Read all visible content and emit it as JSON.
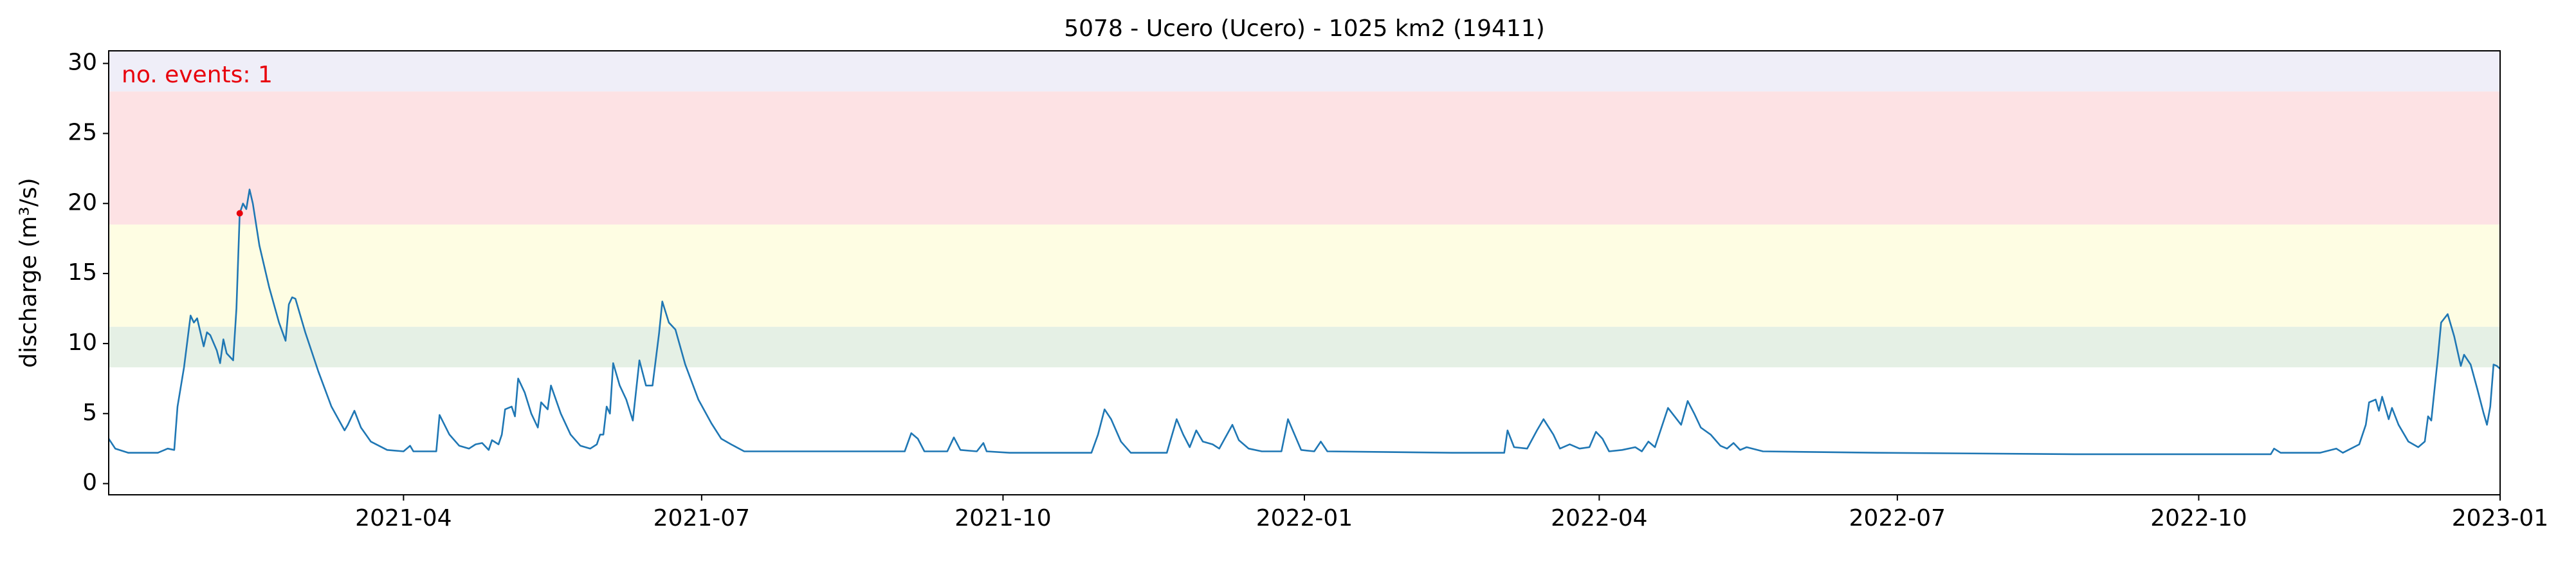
{
  "chart_data": {
    "type": "line",
    "title": "5078 - Ucero (Ucero) - 1025 km2 (19411)",
    "y_label": "discharge (m³/s)",
    "annotation": "no. events: 1",
    "annotation_color": "#e8000b",
    "xlim": [
      0,
      730
    ],
    "xticks": [
      {
        "value": 90,
        "label": "2021-04"
      },
      {
        "value": 181,
        "label": "2021-07"
      },
      {
        "value": 273,
        "label": "2021-10"
      },
      {
        "value": 365,
        "label": "2022-01"
      },
      {
        "value": 455,
        "label": "2022-04"
      },
      {
        "value": 546,
        "label": "2022-07"
      },
      {
        "value": 638,
        "label": "2022-10"
      },
      {
        "value": 730,
        "label": "2023-01"
      }
    ],
    "ylim": [
      -0.8,
      30.9
    ],
    "yticks": [
      0,
      5,
      10,
      15,
      20,
      25,
      30
    ],
    "thresholds": [
      8.3,
      11.2,
      18.5,
      28
    ],
    "band_colors": [
      "#e5f0e5",
      "#fefde3",
      "#fde2e4",
      "#efeef8"
    ],
    "series": [
      {
        "color": "#1f77b4",
        "x": [
          0,
          2,
          6,
          15,
          18,
          20,
          21,
          23,
          25,
          26,
          27,
          29,
          30,
          31,
          33,
          34,
          35,
          36,
          38,
          39,
          40,
          41,
          42,
          43,
          44,
          46,
          49,
          52,
          54,
          55,
          56,
          57,
          60,
          64,
          68,
          72,
          73,
          75,
          77,
          80,
          85,
          90,
          92,
          93,
          100,
          101,
          104,
          107,
          110,
          112,
          114,
          116,
          117,
          119,
          120,
          121,
          123,
          124,
          125,
          127,
          129,
          131,
          132,
          134,
          135,
          138,
          141,
          144,
          147,
          149,
          150,
          151,
          152,
          153,
          154,
          156,
          158,
          160,
          162,
          164,
          166,
          168,
          169,
          171,
          173,
          176,
          180,
          184,
          187,
          190,
          194,
          220,
          243,
          245,
          247,
          249,
          256,
          258,
          260,
          265,
          267,
          268,
          275,
          300,
          302,
          304,
          306,
          309,
          312,
          323,
          326,
          328,
          330,
          332,
          334,
          337,
          339,
          343,
          345,
          348,
          352,
          358,
          360,
          362,
          364,
          368,
          370,
          372,
          410,
          426,
          427,
          429,
          433,
          436,
          438,
          441,
          443,
          446,
          449,
          452,
          454,
          456,
          458,
          462,
          466,
          468,
          470,
          472,
          476,
          478,
          480,
          482,
          484,
          486,
          489,
          492,
          494,
          496,
          498,
          500,
          505,
          540,
          600,
          650,
          660,
          661,
          663,
          665,
          675,
          680,
          682,
          687,
          689,
          690,
          692,
          693,
          694,
          696,
          697,
          699,
          702,
          705,
          707,
          708,
          709,
          711,
          712,
          714,
          716,
          718,
          719,
          721,
          723,
          725,
          726,
          727,
          728,
          729,
          730
        ],
        "values": [
          3.2,
          2.5,
          2.2,
          2.2,
          2.5,
          2.4,
          5.5,
          8.3,
          12,
          11.5,
          11.8,
          9.8,
          10.8,
          10.6,
          9.5,
          8.6,
          10.3,
          9.3,
          8.8,
          12.5,
          19.3,
          20,
          19.6,
          21,
          20,
          17,
          14,
          11.5,
          10.2,
          12.8,
          13.3,
          13.2,
          10.8,
          8,
          5.5,
          3.8,
          4.2,
          5.2,
          4,
          3,
          2.4,
          2.3,
          2.7,
          2.3,
          2.3,
          4.9,
          3.5,
          2.7,
          2.5,
          2.8,
          2.9,
          2.4,
          3.1,
          2.8,
          3.5,
          5.3,
          5.5,
          4.8,
          7.5,
          6.5,
          5,
          4,
          5.8,
          5.3,
          7,
          5,
          3.5,
          2.7,
          2.5,
          2.8,
          3.5,
          3.5,
          5.5,
          5,
          8.6,
          7,
          6,
          4.5,
          8.8,
          7,
          7,
          10.7,
          13,
          11.5,
          11,
          8.5,
          6,
          4.3,
          3.2,
          2.8,
          2.3,
          2.3,
          2.3,
          3.6,
          3.2,
          2.3,
          2.3,
          3.3,
          2.4,
          2.3,
          2.9,
          2.3,
          2.2,
          2.2,
          3.5,
          5.3,
          4.6,
          3,
          2.2,
          2.2,
          4.6,
          3.5,
          2.6,
          3.8,
          3,
          2.8,
          2.5,
          4.2,
          3.1,
          2.5,
          2.3,
          2.3,
          4.6,
          3.5,
          2.4,
          2.3,
          3,
          2.3,
          2.2,
          2.2,
          3.8,
          2.6,
          2.5,
          3.8,
          4.6,
          3.5,
          2.5,
          2.8,
          2.5,
          2.6,
          3.7,
          3.2,
          2.3,
          2.4,
          2.6,
          2.3,
          3,
          2.6,
          5.4,
          4.8,
          4.2,
          5.9,
          5,
          4,
          3.5,
          2.7,
          2.5,
          2.9,
          2.4,
          2.6,
          2.3,
          2.2,
          2.1,
          2.1,
          2.1,
          2.5,
          2.2,
          2.2,
          2.2,
          2.5,
          2.2,
          2.8,
          4.2,
          5.8,
          6,
          5.2,
          6.2,
          4.6,
          5.4,
          4.2,
          3,
          2.6,
          3,
          4.8,
          4.5,
          9,
          11.5,
          12.1,
          10.5,
          8.4,
          9.2,
          8.5,
          6.8,
          5,
          4.2,
          5.5,
          8.5,
          8.4,
          8.2
        ]
      }
    ],
    "events": {
      "x": [
        40
      ],
      "values": [
        19.3
      ],
      "color": "#e8000b"
    }
  }
}
